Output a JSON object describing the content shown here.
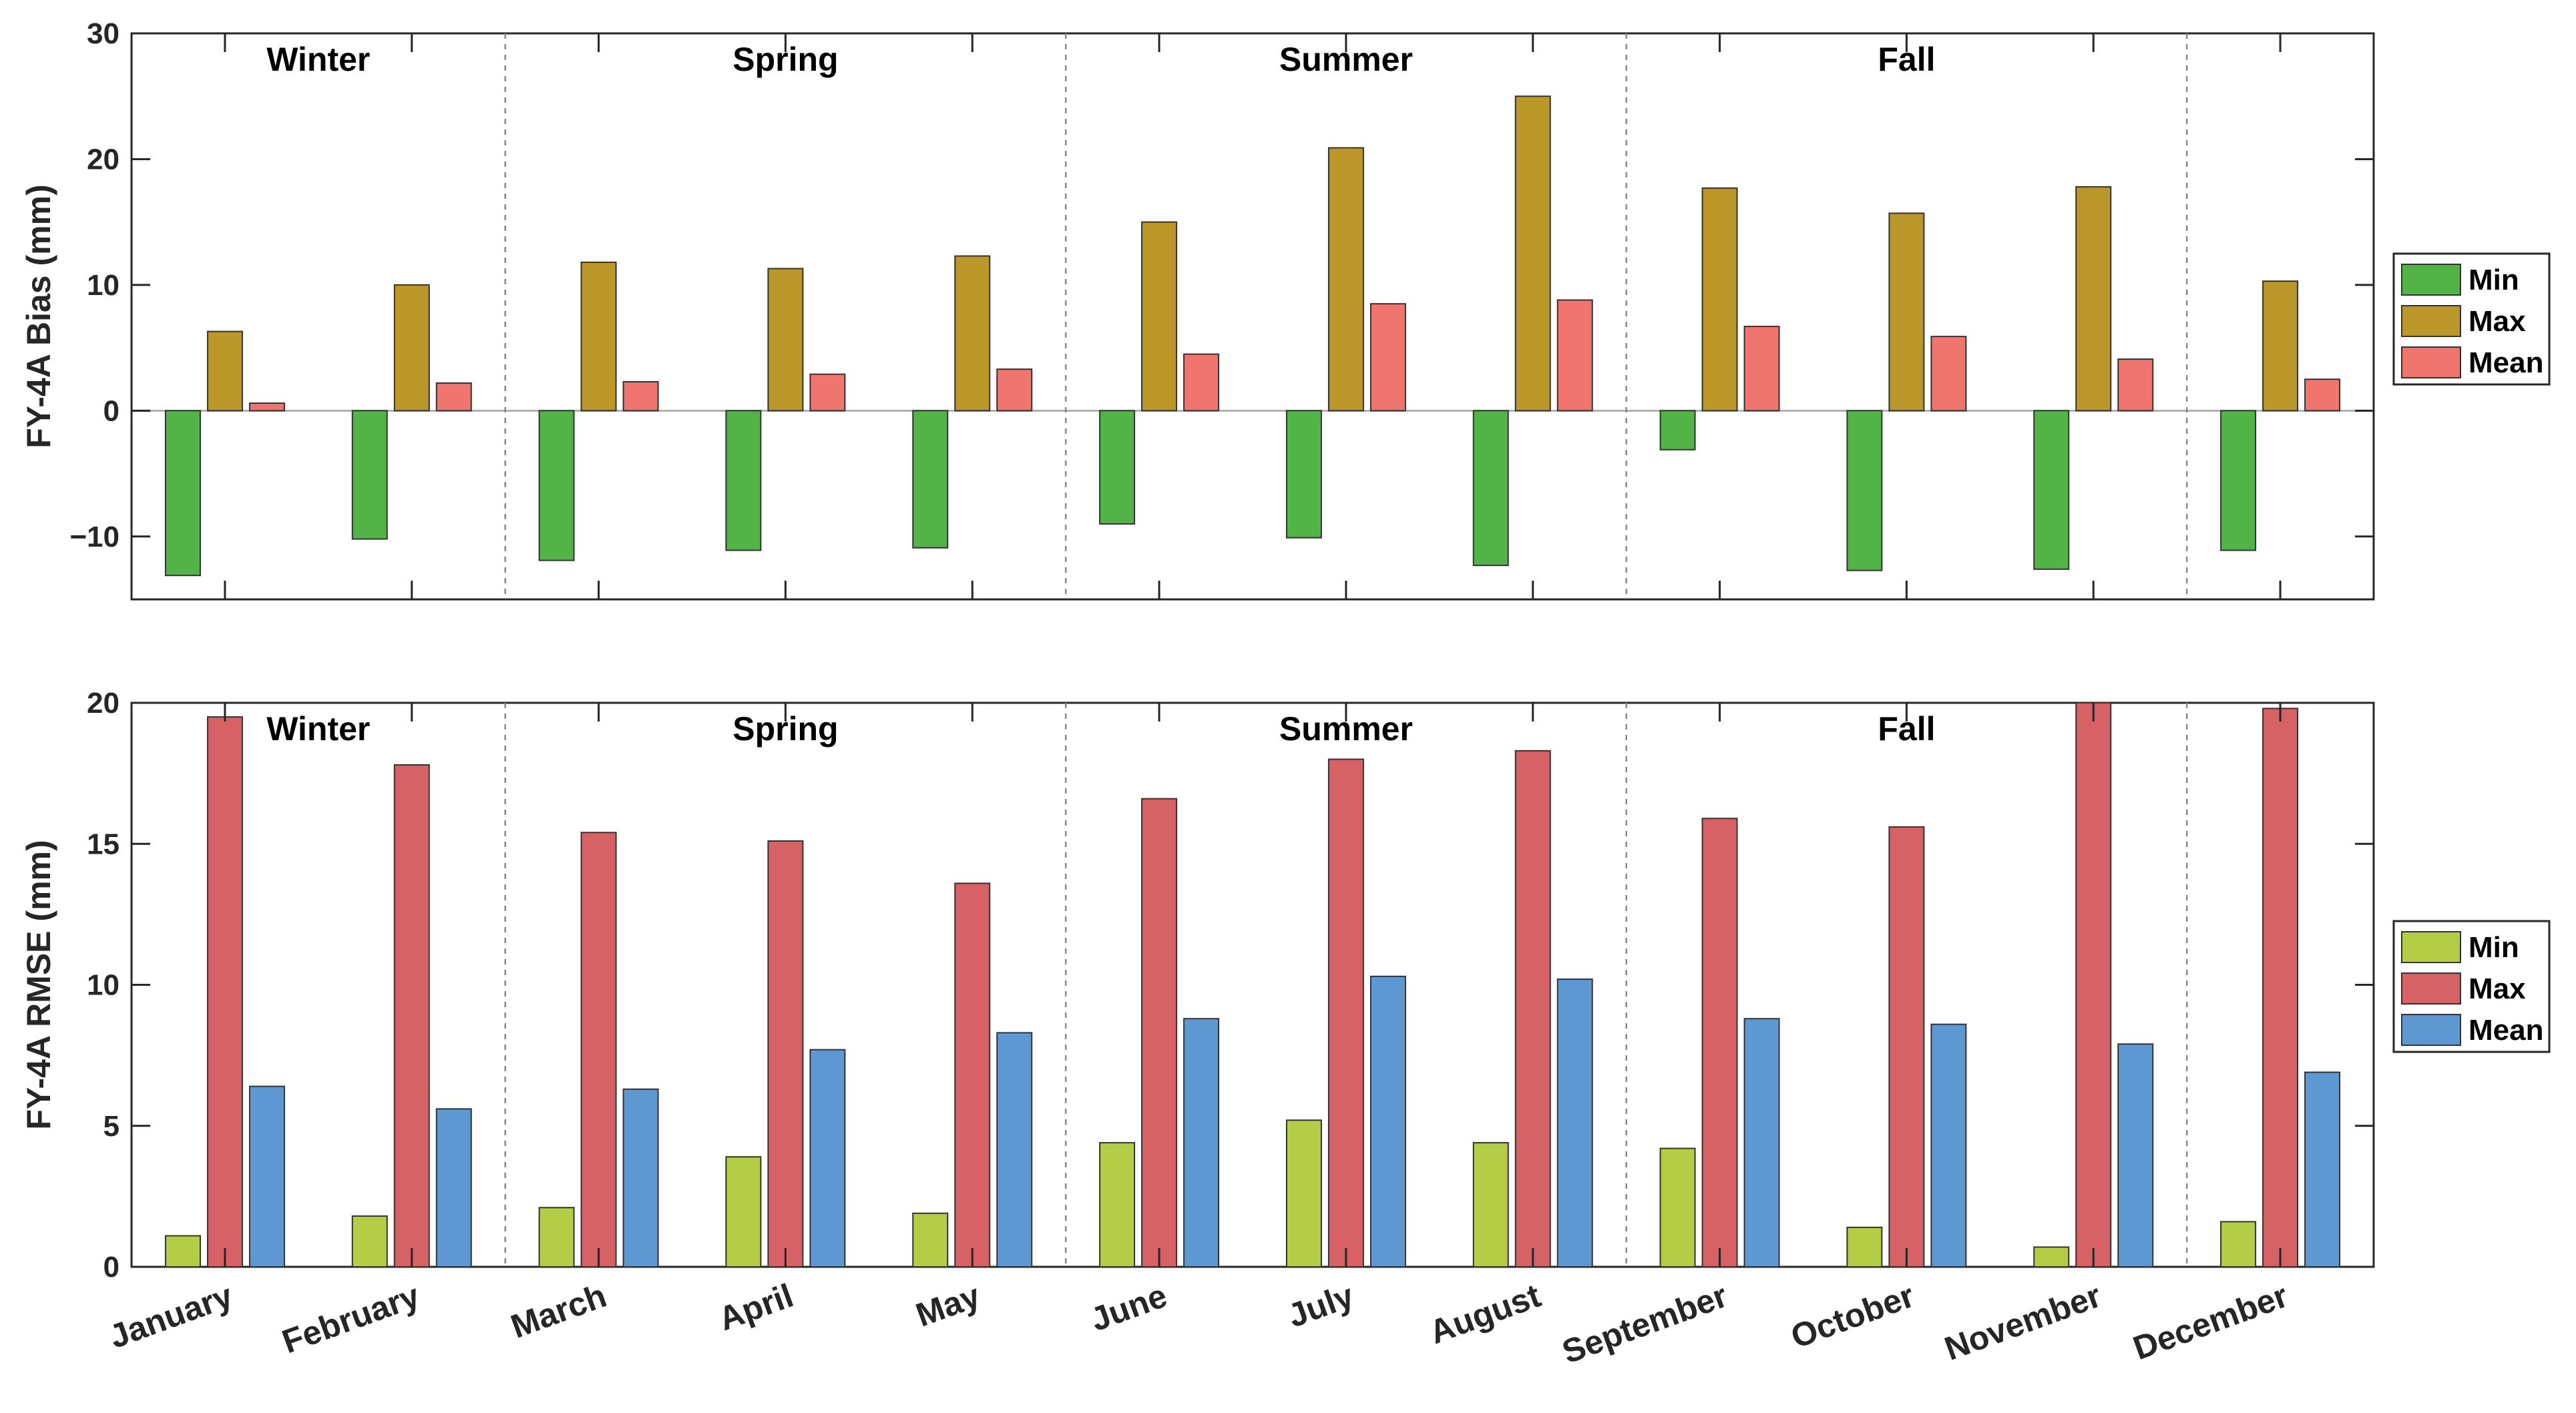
{
  "chart_data": [
    {
      "type": "bar",
      "ylabel": "FY-4A Bias (mm)",
      "ylim": [
        -15,
        30
      ],
      "yticks": [
        -10,
        0,
        10,
        20,
        30
      ],
      "ytick_labels": [
        "−10",
        "0",
        "10",
        "20",
        "30"
      ],
      "categories": [
        "January",
        "February",
        "March",
        "April",
        "May",
        "June",
        "July",
        "August",
        "September",
        "October",
        "November",
        "December"
      ],
      "seasons": [
        "Winter",
        "Spring",
        "Summer",
        "Fall"
      ],
      "series": [
        {
          "name": "Min",
          "color": "#52b447",
          "values": [
            -13.1,
            -10.2,
            -11.9,
            -11.1,
            -10.9,
            -9.0,
            -10.1,
            -12.3,
            -3.1,
            -12.7,
            -12.6,
            -11.1
          ]
        },
        {
          "name": "Max",
          "color": "#bb9629",
          "values": [
            6.3,
            10.0,
            11.8,
            11.3,
            12.3,
            15.0,
            20.9,
            25.0,
            17.7,
            15.7,
            17.8,
            10.3
          ]
        },
        {
          "name": "Mean",
          "color": "#f0756e",
          "values": [
            0.6,
            2.2,
            2.3,
            2.9,
            3.3,
            4.5,
            8.5,
            8.8,
            6.7,
            5.9,
            4.1,
            2.5
          ]
        }
      ],
      "legend": "right",
      "grid": false
    },
    {
      "type": "bar",
      "ylabel": "FY-4A RMSE (mm)",
      "ylim": [
        0,
        20
      ],
      "yticks": [
        0,
        5,
        10,
        15,
        20
      ],
      "ytick_labels": [
        "0",
        "5",
        "10",
        "15",
        "20"
      ],
      "categories": [
        "January",
        "February",
        "March",
        "April",
        "May",
        "June",
        "July",
        "August",
        "September",
        "October",
        "November",
        "December"
      ],
      "seasons": [
        "Winter",
        "Spring",
        "Summer",
        "Fall"
      ],
      "series": [
        {
          "name": "Min",
          "color": "#b3cd46",
          "values": [
            1.1,
            1.8,
            2.1,
            3.9,
            1.9,
            4.4,
            5.2,
            4.4,
            4.2,
            1.4,
            0.7,
            1.6
          ]
        },
        {
          "name": "Max",
          "color": "#d66266",
          "values": [
            19.5,
            17.8,
            15.4,
            15.1,
            13.6,
            16.6,
            18.0,
            18.3,
            15.9,
            15.6,
            20.0,
            19.8
          ]
        },
        {
          "name": "Mean",
          "color": "#5e98d3",
          "values": [
            6.4,
            5.6,
            6.3,
            7.7,
            8.3,
            8.8,
            10.3,
            10.2,
            8.8,
            8.6,
            7.9,
            6.9
          ]
        }
      ],
      "legend": "right",
      "grid": false
    }
  ]
}
